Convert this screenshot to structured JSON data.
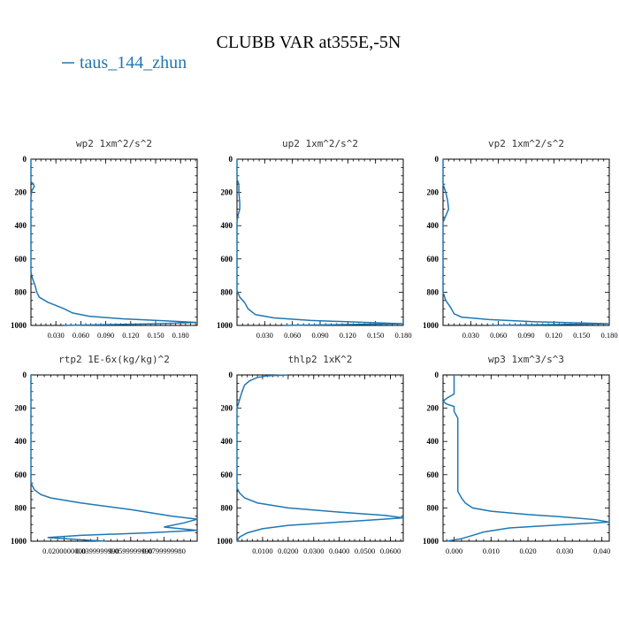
{
  "figure": {
    "title": "CLUBB VAR at355E,-5N",
    "legend": "taus_144_zhun",
    "series_color": "#1f77b4"
  },
  "chart_data": [
    {
      "type": "line",
      "title": "wp2   1xm^2/s^2",
      "series_name": "taus_144_zhun",
      "xlim": [
        0,
        0.2
      ],
      "ylim": [
        1000,
        0
      ],
      "yticks": [
        "0",
        "200",
        "400",
        "600",
        "800",
        "1000"
      ],
      "xticks": [
        "0.030",
        "0.060",
        "0.090",
        "0.120",
        "0.150",
        "0.180"
      ],
      "xtick_values": [
        0.03,
        0.06,
        0.09,
        0.12,
        0.15,
        0.18
      ],
      "points": [
        [
          0.0,
          0
        ],
        [
          0.0,
          135
        ],
        [
          0.003,
          150
        ],
        [
          0.004,
          165
        ],
        [
          0.001,
          190
        ],
        [
          0.0,
          230
        ],
        [
          0.0,
          680
        ],
        [
          0.002,
          720
        ],
        [
          0.005,
          760
        ],
        [
          0.007,
          800
        ],
        [
          0.01,
          830
        ],
        [
          0.02,
          860
        ],
        [
          0.04,
          900
        ],
        [
          0.05,
          925
        ],
        [
          0.07,
          945
        ],
        [
          0.11,
          960
        ],
        [
          0.16,
          972
        ],
        [
          0.2,
          982
        ],
        [
          0.15,
          990
        ],
        [
          0.08,
          996
        ],
        [
          0.04,
          1000
        ]
      ]
    },
    {
      "type": "line",
      "title": "up2   1xm^2/s^2",
      "series_name": "taus_144_zhun",
      "xlim": [
        0,
        0.18
      ],
      "ylim": [
        1000,
        0
      ],
      "yticks": [
        "0",
        "200",
        "400",
        "600",
        "800",
        "1000"
      ],
      "xticks": [
        "0.030",
        "0.060",
        "0.090",
        "0.120",
        "0.150",
        "0.180"
      ],
      "xtick_values": [
        0.03,
        0.06,
        0.09,
        0.12,
        0.15,
        0.18
      ],
      "points": [
        [
          0.0,
          0
        ],
        [
          0.0,
          120
        ],
        [
          0.002,
          150
        ],
        [
          0.002,
          200
        ],
        [
          0.003,
          260
        ],
        [
          0.003,
          300
        ],
        [
          0.001,
          340
        ],
        [
          0.0,
          380
        ],
        [
          0.0,
          790
        ],
        [
          0.003,
          830
        ],
        [
          0.008,
          860
        ],
        [
          0.012,
          900
        ],
        [
          0.02,
          935
        ],
        [
          0.04,
          955
        ],
        [
          0.08,
          970
        ],
        [
          0.13,
          980
        ],
        [
          0.18,
          990
        ],
        [
          0.1,
          996
        ],
        [
          0.05,
          1000
        ]
      ]
    },
    {
      "type": "line",
      "title": "vp2   1xm^2/s^2",
      "series_name": "taus_144_zhun",
      "xlim": [
        0,
        0.18
      ],
      "ylim": [
        1000,
        0
      ],
      "yticks": [
        "0",
        "200",
        "400",
        "600",
        "800",
        "1000"
      ],
      "xticks": [
        "0.030",
        "0.060",
        "0.090",
        "0.120",
        "0.150",
        "0.180"
      ],
      "xtick_values": [
        0.03,
        0.06,
        0.09,
        0.12,
        0.15,
        0.18
      ],
      "points": [
        [
          0.0,
          0
        ],
        [
          0.0,
          150
        ],
        [
          0.003,
          200
        ],
        [
          0.005,
          250
        ],
        [
          0.006,
          300
        ],
        [
          0.003,
          340
        ],
        [
          0.0,
          380
        ],
        [
          0.0,
          800
        ],
        [
          0.003,
          850
        ],
        [
          0.008,
          890
        ],
        [
          0.012,
          930
        ],
        [
          0.02,
          950
        ],
        [
          0.05,
          965
        ],
        [
          0.1,
          978
        ],
        [
          0.18,
          990
        ],
        [
          0.1,
          996
        ],
        [
          0.05,
          1000
        ]
      ]
    },
    {
      "type": "line",
      "title": "rtp2   1E-6x(kg/kg)^2",
      "series_name": "taus_144_zhun",
      "xlim": [
        0,
        0.1
      ],
      "ylim": [
        1000,
        0
      ],
      "yticks": [
        "0",
        "200",
        "400",
        "600",
        "800",
        "1000"
      ],
      "xticks": [
        "0.0200000000",
        "0.0399999990",
        "0.0599999990",
        "0.0799999980"
      ],
      "xtick_values": [
        0.02,
        0.04,
        0.06,
        0.08
      ],
      "points": [
        [
          0.0,
          0
        ],
        [
          0.0,
          650
        ],
        [
          0.002,
          690
        ],
        [
          0.006,
          720
        ],
        [
          0.012,
          740
        ],
        [
          0.03,
          770
        ],
        [
          0.06,
          810
        ],
        [
          0.085,
          850
        ],
        [
          0.1,
          868
        ],
        [
          0.092,
          890
        ],
        [
          0.08,
          915
        ],
        [
          0.1,
          935
        ],
        [
          0.07,
          950
        ],
        [
          0.03,
          965
        ],
        [
          0.01,
          978
        ],
        [
          0.02,
          985
        ],
        [
          0.035,
          995
        ],
        [
          0.045,
          1000
        ]
      ]
    },
    {
      "type": "line",
      "title": "thlp2   1xK^2",
      "series_name": "taus_144_zhun",
      "xlim": [
        0,
        0.065
      ],
      "ylim": [
        1000,
        0
      ],
      "yticks": [
        "0",
        "200",
        "400",
        "600",
        "800",
        "1000"
      ],
      "xticks": [
        "0.0100",
        "0.0200",
        "0.0300",
        "0.0400",
        "0.0500",
        "0.0600"
      ],
      "xtick_values": [
        0.01,
        0.02,
        0.03,
        0.04,
        0.05,
        0.06
      ],
      "points": [
        [
          0.02,
          0
        ],
        [
          0.012,
          5
        ],
        [
          0.008,
          15
        ],
        [
          0.005,
          35
        ],
        [
          0.003,
          60
        ],
        [
          0.002,
          100
        ],
        [
          0.001,
          150
        ],
        [
          0.0,
          200
        ],
        [
          0.0,
          680
        ],
        [
          0.001,
          710
        ],
        [
          0.003,
          740
        ],
        [
          0.008,
          770
        ],
        [
          0.02,
          800
        ],
        [
          0.04,
          825
        ],
        [
          0.058,
          845
        ],
        [
          0.065,
          860
        ],
        [
          0.045,
          880
        ],
        [
          0.02,
          905
        ],
        [
          0.01,
          925
        ],
        [
          0.004,
          950
        ],
        [
          0.001,
          975
        ],
        [
          0.0,
          1000
        ]
      ]
    },
    {
      "type": "line",
      "title": "wp3   1xm^3/s^3",
      "series_name": "taus_144_zhun",
      "xlim": [
        -0.003,
        0.042
      ],
      "ylim": [
        1000,
        0
      ],
      "yticks": [
        "0",
        "200",
        "400",
        "600",
        "800",
        "1000"
      ],
      "xticks": [
        "0.000",
        "0.010",
        "0.020",
        "0.030",
        "0.040"
      ],
      "xtick_values": [
        0.0,
        0.01,
        0.02,
        0.03,
        0.04
      ],
      "points": [
        [
          0.0,
          0
        ],
        [
          0.0,
          115
        ],
        [
          -0.002,
          140
        ],
        [
          -0.003,
          160
        ],
        [
          -0.002,
          175
        ],
        [
          0.0,
          190
        ],
        [
          0.0,
          220
        ],
        [
          0.001,
          260
        ],
        [
          0.001,
          350
        ],
        [
          0.001,
          500
        ],
        [
          0.001,
          600
        ],
        [
          0.001,
          700
        ],
        [
          0.002,
          740
        ],
        [
          0.003,
          770
        ],
        [
          0.005,
          800
        ],
        [
          0.01,
          820
        ],
        [
          0.02,
          840
        ],
        [
          0.03,
          855
        ],
        [
          0.038,
          870
        ],
        [
          0.042,
          885
        ],
        [
          0.03,
          900
        ],
        [
          0.015,
          920
        ],
        [
          0.008,
          945
        ],
        [
          0.005,
          965
        ],
        [
          0.002,
          985
        ],
        [
          -0.002,
          1000
        ]
      ]
    }
  ]
}
